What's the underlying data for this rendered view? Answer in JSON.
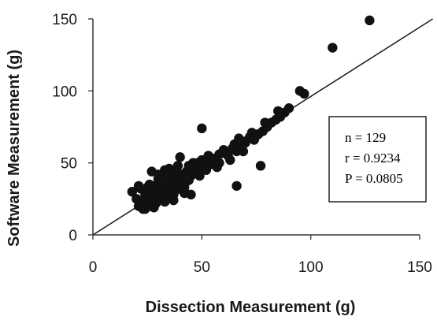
{
  "chart_data": {
    "type": "scatter",
    "xlabel": "Dissection Measurement (g)",
    "ylabel": "Software Measurement (g)",
    "xlim": [
      0,
      150
    ],
    "ylim": [
      0,
      150
    ],
    "x_ticks": [
      "0",
      "50",
      "100",
      "150"
    ],
    "y_ticks": [
      "0",
      "50",
      "100",
      "150"
    ],
    "grid": false,
    "reference_line": {
      "type": "identity",
      "from": [
        0,
        0
      ],
      "to": [
        156,
        150
      ]
    },
    "stats_box": {
      "placement": "right",
      "lines": [
        "n = 129",
        "r = 0.9234",
        "P = 0.0805"
      ]
    },
    "series": [
      {
        "x": [
          18,
          20,
          21,
          22,
          23,
          24,
          25,
          26,
          27,
          28,
          28,
          29,
          30,
          30,
          31,
          32,
          33,
          34,
          35,
          36,
          37,
          38,
          39,
          40,
          41,
          42,
          43,
          44,
          45,
          46,
          22,
          24,
          26,
          28,
          30,
          32,
          34,
          36,
          38,
          40,
          42,
          44,
          23,
          25,
          27,
          29,
          31,
          33,
          35,
          37,
          39,
          41,
          24,
          26,
          29,
          31,
          34,
          36,
          38,
          21,
          27,
          33,
          39,
          46,
          47,
          48,
          50,
          51,
          53,
          55,
          57,
          60,
          62,
          64,
          66,
          68,
          70,
          72,
          74,
          76,
          78,
          80,
          82,
          84,
          86,
          88,
          90,
          95,
          97,
          44,
          46,
          48,
          50,
          52,
          54,
          56,
          58,
          60,
          65,
          67,
          70,
          75,
          49,
          57,
          63,
          69,
          73,
          79,
          85,
          52,
          58,
          35,
          40,
          45,
          28,
          25,
          32,
          37,
          42,
          66,
          77,
          50,
          110,
          127,
          30,
          33,
          35,
          38,
          42
        ],
        "y": [
          30,
          25,
          20,
          22,
          18,
          26,
          24,
          28,
          21,
          30,
          19,
          33,
          27,
          36,
          29,
          35,
          31,
          38,
          34,
          37,
          32,
          40,
          36,
          39,
          42,
          35,
          44,
          38,
          41,
          43,
          32,
          28,
          35,
          33,
          39,
          30,
          42,
          35,
          45,
          37,
          33,
          40,
          22,
          25,
          27,
          24,
          30,
          26,
          31,
          28,
          33,
          36,
          18,
          20,
          22,
          25,
          27,
          29,
          31,
          34,
          44,
          45,
          48,
          50,
          46,
          43,
          52,
          49,
          55,
          53,
          51,
          57,
          55,
          60,
          58,
          62,
          65,
          68,
          66,
          70,
          72,
          75,
          78,
          80,
          82,
          85,
          88,
          100,
          98,
          48,
          44,
          50,
          47,
          52,
          49,
          53,
          56,
          59,
          63,
          67,
          64,
          69,
          41,
          47,
          52,
          58,
          71,
          78,
          86,
          45,
          50,
          46,
          54,
          28,
          26,
          33,
          36,
          24,
          30,
          34,
          48,
          74,
          130,
          149,
          42,
          23,
          37,
          44,
          29
        ]
      }
    ]
  }
}
